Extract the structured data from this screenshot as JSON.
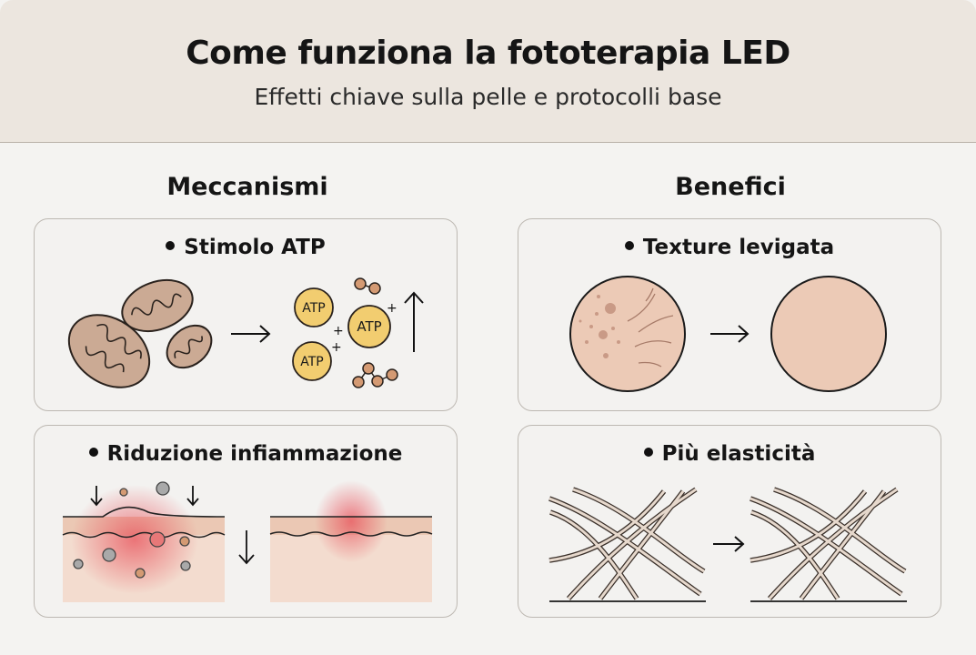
{
  "header": {
    "title": "Come funziona la fototerapia LED",
    "subtitle": "Effetti chiave sulla pelle e protocolli base"
  },
  "columns": [
    {
      "title": "Meccanismi",
      "cards": [
        {
          "title": "Stimolo ATP",
          "atp_label": "ATP"
        },
        {
          "title": "Riduzione infiammazione"
        }
      ]
    },
    {
      "title": "Benefici",
      "cards": [
        {
          "title": "Texture levigata"
        },
        {
          "title": "Più elasticità"
        }
      ]
    }
  ],
  "colors": {
    "header_bg": "#ece6df",
    "page_bg": "#f4f3f1",
    "mitochondria": "#cbaa94",
    "atp": "#f2cd70",
    "skin": "#eccab6",
    "inflammation": "#e8515a"
  }
}
